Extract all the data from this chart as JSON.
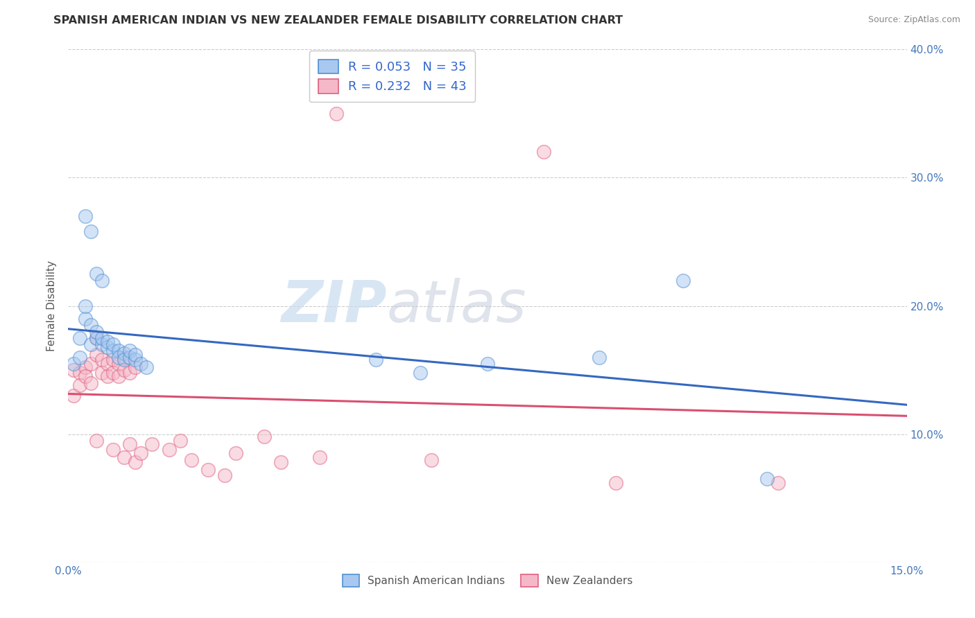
{
  "title": "SPANISH AMERICAN INDIAN VS NEW ZEALANDER FEMALE DISABILITY CORRELATION CHART",
  "source": "Source: ZipAtlas.com",
  "ylabel": "Female Disability",
  "xlim": [
    0,
    0.15
  ],
  "ylim": [
    0,
    0.4
  ],
  "xticks": [
    0.0,
    0.05,
    0.1,
    0.15
  ],
  "xticklabels": [
    "0.0%",
    "",
    "",
    "15.0%"
  ],
  "yticks": [
    0.0,
    0.1,
    0.2,
    0.3,
    0.4
  ],
  "yticklabels": [
    "",
    "10.0%",
    "20.0%",
    "30.0%",
    "40.0%"
  ],
  "blue_R": 0.053,
  "blue_N": 35,
  "pink_R": 0.232,
  "pink_N": 43,
  "blue_fill": "#A8C8F0",
  "pink_fill": "#F5B8C8",
  "blue_edge": "#5090D0",
  "pink_edge": "#E06080",
  "blue_line": "#3468C0",
  "pink_line": "#D85070",
  "legend_label_blue": "Spanish American Indians",
  "legend_label_pink": "New Zealanders",
  "watermark_zip": "ZIP",
  "watermark_atlas": "atlas",
  "blue_points": [
    [
      0.001,
      0.155
    ],
    [
      0.002,
      0.16
    ],
    [
      0.002,
      0.175
    ],
    [
      0.003,
      0.19
    ],
    [
      0.003,
      0.2
    ],
    [
      0.004,
      0.185
    ],
    [
      0.004,
      0.17
    ],
    [
      0.005,
      0.175
    ],
    [
      0.005,
      0.18
    ],
    [
      0.006,
      0.17
    ],
    [
      0.006,
      0.175
    ],
    [
      0.007,
      0.168
    ],
    [
      0.007,
      0.172
    ],
    [
      0.008,
      0.165
    ],
    [
      0.008,
      0.17
    ],
    [
      0.009,
      0.165
    ],
    [
      0.009,
      0.16
    ],
    [
      0.01,
      0.163
    ],
    [
      0.01,
      0.158
    ],
    [
      0.011,
      0.16
    ],
    [
      0.011,
      0.165
    ],
    [
      0.012,
      0.158
    ],
    [
      0.012,
      0.162
    ],
    [
      0.013,
      0.155
    ],
    [
      0.014,
      0.152
    ],
    [
      0.003,
      0.27
    ],
    [
      0.004,
      0.258
    ],
    [
      0.005,
      0.225
    ],
    [
      0.006,
      0.22
    ],
    [
      0.055,
      0.158
    ],
    [
      0.063,
      0.148
    ],
    [
      0.075,
      0.155
    ],
    [
      0.095,
      0.16
    ],
    [
      0.11,
      0.22
    ],
    [
      0.125,
      0.065
    ]
  ],
  "pink_points": [
    [
      0.001,
      0.15
    ],
    [
      0.001,
      0.13
    ],
    [
      0.002,
      0.148
    ],
    [
      0.002,
      0.138
    ],
    [
      0.003,
      0.152
    ],
    [
      0.003,
      0.145
    ],
    [
      0.004,
      0.14
    ],
    [
      0.004,
      0.155
    ],
    [
      0.005,
      0.175
    ],
    [
      0.005,
      0.162
    ],
    [
      0.006,
      0.158
    ],
    [
      0.006,
      0.148
    ],
    [
      0.007,
      0.155
    ],
    [
      0.007,
      0.145
    ],
    [
      0.008,
      0.158
    ],
    [
      0.008,
      0.148
    ],
    [
      0.009,
      0.155
    ],
    [
      0.009,
      0.145
    ],
    [
      0.01,
      0.16
    ],
    [
      0.01,
      0.15
    ],
    [
      0.011,
      0.148
    ],
    [
      0.012,
      0.152
    ],
    [
      0.005,
      0.095
    ],
    [
      0.008,
      0.088
    ],
    [
      0.01,
      0.082
    ],
    [
      0.011,
      0.092
    ],
    [
      0.012,
      0.078
    ],
    [
      0.013,
      0.085
    ],
    [
      0.015,
      0.092
    ],
    [
      0.018,
      0.088
    ],
    [
      0.02,
      0.095
    ],
    [
      0.022,
      0.08
    ],
    [
      0.025,
      0.072
    ],
    [
      0.028,
      0.068
    ],
    [
      0.03,
      0.085
    ],
    [
      0.035,
      0.098
    ],
    [
      0.038,
      0.078
    ],
    [
      0.045,
      0.082
    ],
    [
      0.048,
      0.35
    ],
    [
      0.085,
      0.32
    ],
    [
      0.065,
      0.08
    ],
    [
      0.098,
      0.062
    ],
    [
      0.127,
      0.062
    ]
  ]
}
